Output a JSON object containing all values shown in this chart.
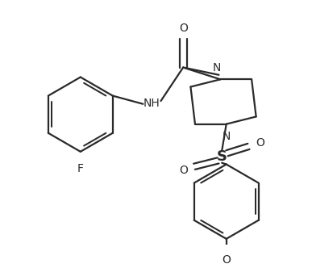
{
  "bg_color": "#ffffff",
  "line_color": "#2a2a2a",
  "line_width": 1.6,
  "font_size": 10,
  "figsize": [
    3.87,
    3.27
  ],
  "dpi": 100,
  "xlim": [
    0,
    3.87
  ],
  "ylim": [
    0,
    3.27
  ]
}
